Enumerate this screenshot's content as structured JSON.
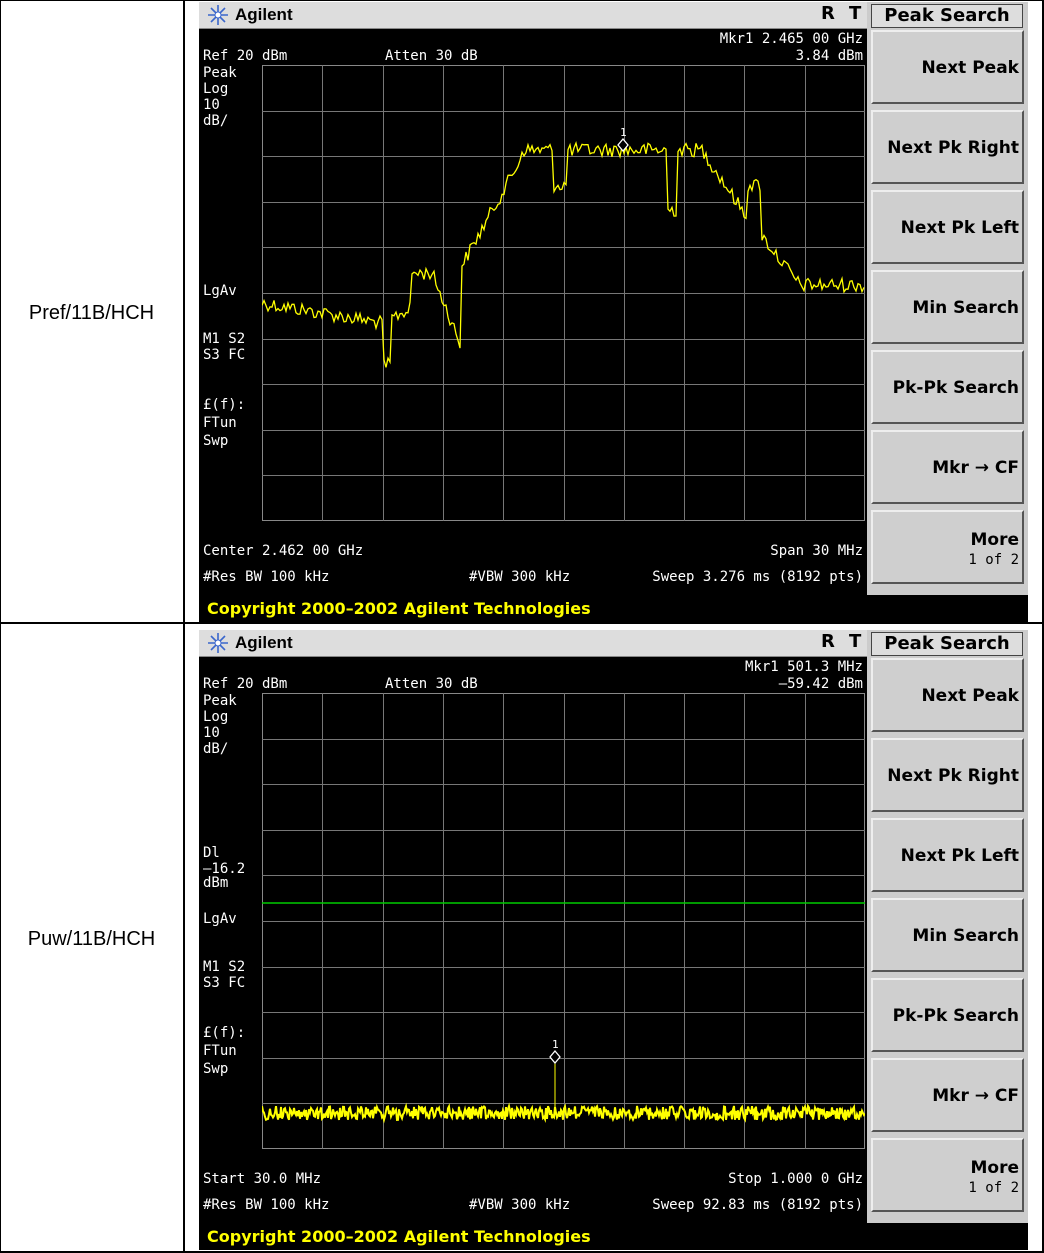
{
  "rows": [
    {
      "label": "Pref/11B/HCH",
      "brand": "Agilent",
      "status_r": "R",
      "status_t": "T",
      "marker_line1": "Mkr1  2.465 00 GHz",
      "marker_line2": "3.84 dBm",
      "ref_level": "Ref 20 dBm",
      "attenuation": "Atten 30 dB",
      "left_labels": [
        "Peak",
        "Log",
        "10",
        "dB/",
        "LgAv",
        "M1  S2",
        "S3  FC",
        "£(f):",
        "FTun",
        "Swp"
      ],
      "show_display_line": false,
      "display_line_label": [],
      "freq_left": "Center 2.462 00 GHz",
      "freq_right": "Span 30 MHz",
      "res_bw": "#Res BW 100 kHz",
      "vbw": "#VBW 300 kHz",
      "sweep": "Sweep 3.276 ms (8192 pts)",
      "copyright": "Copyright 2000–2002 Agilent Technologies",
      "marker_number": "1",
      "trace_type": "hump",
      "trace_color": "#ffff00",
      "display_line_color": "#00cc00"
    },
    {
      "label": "Puw/11B/HCH",
      "brand": "Agilent",
      "status_r": "R",
      "status_t": "T",
      "marker_line1": "Mkr1  501.3 MHz",
      "marker_line2": "–59.42 dBm",
      "ref_level": "Ref 20 dBm",
      "attenuation": "Atten 30 dB",
      "left_labels": [
        "Peak",
        "Log",
        "10",
        "dB/",
        "LgAv",
        "M1  S2",
        "S3  FC",
        "£(f):",
        "FTun",
        "Swp"
      ],
      "show_display_line": true,
      "display_line_label": [
        "Dl",
        "–16.2",
        "dBm"
      ],
      "freq_left": "Start 30.0 MHz",
      "freq_right": "Stop 1.000 0 GHz",
      "res_bw": "#Res BW 100 kHz",
      "vbw": "#VBW 300 kHz",
      "sweep": "Sweep 92.83 ms (8192 pts)",
      "copyright": "Copyright 2000–2002 Agilent Technologies",
      "marker_number": "1",
      "trace_type": "noise",
      "trace_color": "#ffff00",
      "display_line_color": "#00cc00"
    }
  ],
  "softkeys": {
    "title": "Peak Search",
    "buttons": [
      {
        "label": "Next Peak",
        "sub": ""
      },
      {
        "label": "Next Pk Right",
        "sub": ""
      },
      {
        "label": "Next Pk Left",
        "sub": ""
      },
      {
        "label": "Min Search",
        "sub": ""
      },
      {
        "label": "Pk-Pk Search",
        "sub": ""
      },
      {
        "label": "Mkr → CF",
        "sub": ""
      },
      {
        "label": "More",
        "sub": "1 of 2"
      }
    ]
  }
}
